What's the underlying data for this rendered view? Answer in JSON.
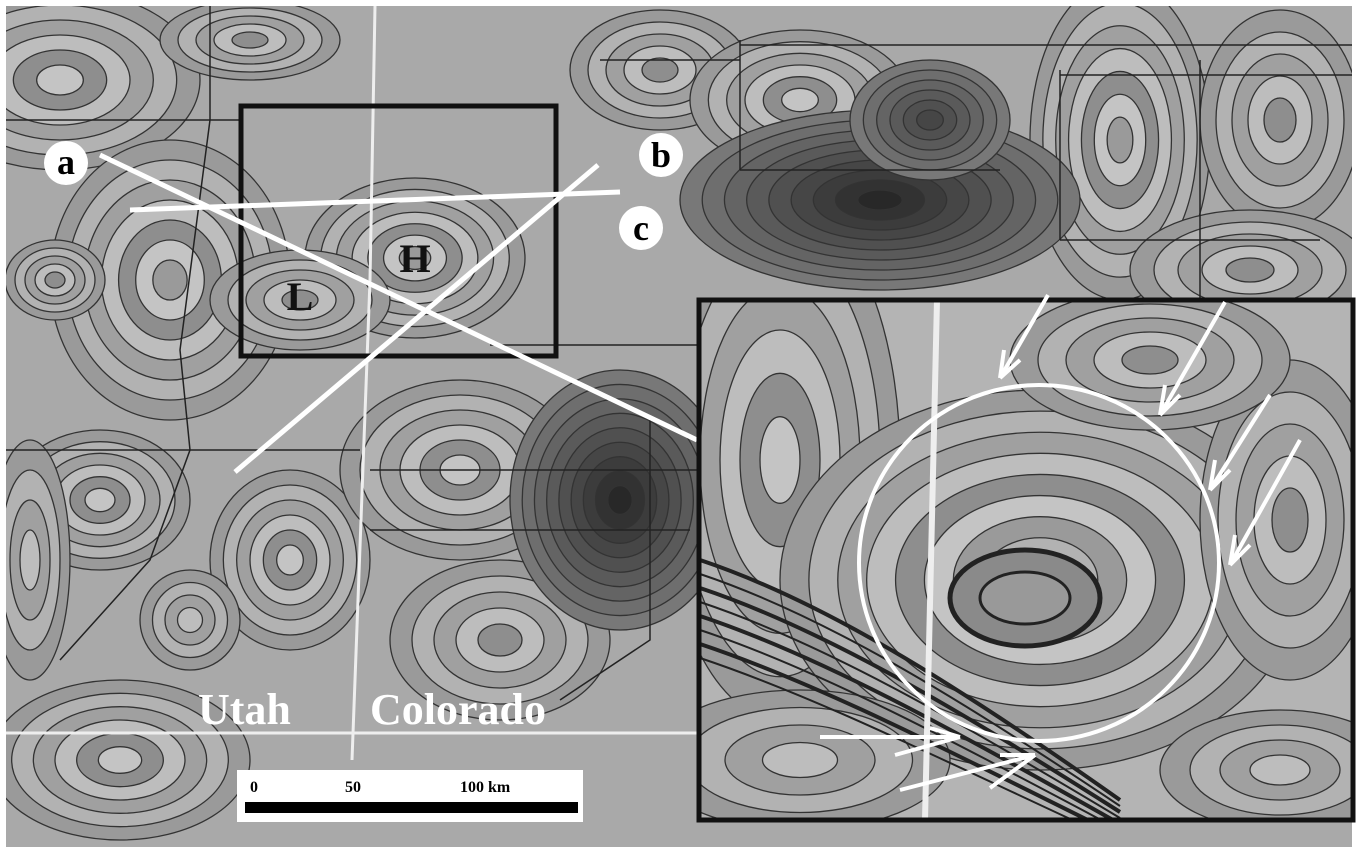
{
  "map": {
    "profile_labels": [
      "a",
      "b",
      "c"
    ],
    "high_label": "H",
    "low_label": "L",
    "states": [
      "Utah",
      "Colorado"
    ],
    "scale_bar": {
      "ticks": [
        "0",
        "50",
        "100 km"
      ]
    }
  }
}
